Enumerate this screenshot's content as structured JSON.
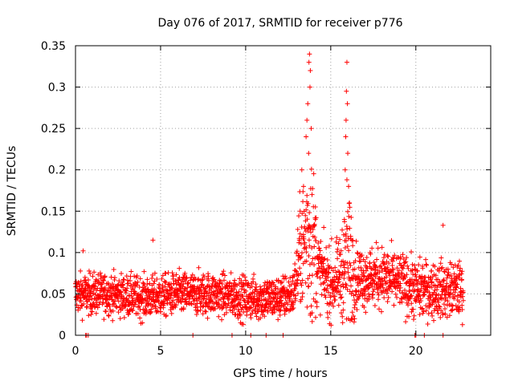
{
  "chart_data": {
    "type": "scatter",
    "title": "Day 076 of 2017, SRMTID for receiver p776",
    "xlabel": "GPS time / hours",
    "ylabel": "SRMTID / TECUs",
    "xlim": [
      0,
      24.4
    ],
    "ylim": [
      0,
      0.35
    ],
    "xticks": [
      0,
      5,
      10,
      15,
      20
    ],
    "yticks": [
      0,
      0.05,
      0.1,
      0.15,
      0.2,
      0.25,
      0.3,
      0.35
    ],
    "xtick_labels": [
      "0",
      "5",
      "10",
      "15",
      "20"
    ],
    "ytick_labels": [
      "0",
      "0.05",
      "0.1",
      "0.15",
      "0.2",
      "0.25",
      "0.3",
      "0.35"
    ],
    "grid": true,
    "marker": "+",
    "marker_color": "#ff0000",
    "series": [
      {
        "name": "SRMTID",
        "sampling_interval_hours": 0.01,
        "x_range": [
          0,
          22.8
        ],
        "baseline_profile": [
          {
            "x": 0,
            "y": 0.05
          },
          {
            "x": 2,
            "y": 0.05
          },
          {
            "x": 4,
            "y": 0.045
          },
          {
            "x": 6,
            "y": 0.05
          },
          {
            "x": 8,
            "y": 0.05
          },
          {
            "x": 10,
            "y": 0.045
          },
          {
            "x": 12,
            "y": 0.045
          },
          {
            "x": 12.8,
            "y": 0.05
          },
          {
            "x": 13.2,
            "y": 0.1
          },
          {
            "x": 13.8,
            "y": 0.13
          },
          {
            "x": 14.3,
            "y": 0.08
          },
          {
            "x": 15,
            "y": 0.06
          },
          {
            "x": 15.5,
            "y": 0.07
          },
          {
            "x": 16,
            "y": 0.09
          },
          {
            "x": 16.5,
            "y": 0.07
          },
          {
            "x": 18,
            "y": 0.07
          },
          {
            "x": 19,
            "y": 0.065
          },
          {
            "x": 20,
            "y": 0.055
          },
          {
            "x": 22.8,
            "y": 0.055
          }
        ],
        "spread_profile": [
          {
            "x": 0,
            "y": 0.012
          },
          {
            "x": 12.8,
            "y": 0.013
          },
          {
            "x": 13.2,
            "y": 0.03
          },
          {
            "x": 13.8,
            "y": 0.06
          },
          {
            "x": 14.3,
            "y": 0.02
          },
          {
            "x": 15.5,
            "y": 0.02
          },
          {
            "x": 16,
            "y": 0.05
          },
          {
            "x": 16.5,
            "y": 0.018
          },
          {
            "x": 22.8,
            "y": 0.016
          }
        ],
        "peak_points": [
          {
            "x": 13.75,
            "y": 0.34
          },
          {
            "x": 13.72,
            "y": 0.33
          },
          {
            "x": 13.8,
            "y": 0.32
          },
          {
            "x": 13.78,
            "y": 0.3
          },
          {
            "x": 13.65,
            "y": 0.28
          },
          {
            "x": 13.6,
            "y": 0.26
          },
          {
            "x": 13.85,
            "y": 0.25
          },
          {
            "x": 13.55,
            "y": 0.24
          },
          {
            "x": 13.7,
            "y": 0.22
          },
          {
            "x": 13.3,
            "y": 0.2
          },
          {
            "x": 13.4,
            "y": 0.18
          },
          {
            "x": 13.9,
            "y": 0.17
          },
          {
            "x": 13.2,
            "y": 0.15
          },
          {
            "x": 14.1,
            "y": 0.14
          },
          {
            "x": 15.95,
            "y": 0.33
          },
          {
            "x": 15.92,
            "y": 0.295
          },
          {
            "x": 15.98,
            "y": 0.28
          },
          {
            "x": 15.9,
            "y": 0.26
          },
          {
            "x": 15.88,
            "y": 0.24
          },
          {
            "x": 16.0,
            "y": 0.22
          },
          {
            "x": 15.85,
            "y": 0.2
          },
          {
            "x": 16.05,
            "y": 0.18
          },
          {
            "x": 16.1,
            "y": 0.16
          },
          {
            "x": 15.8,
            "y": 0.14
          },
          {
            "x": 4.55,
            "y": 0.115
          },
          {
            "x": 0.45,
            "y": 0.102
          },
          {
            "x": 21.6,
            "y": 0.133
          }
        ],
        "zero_points": [
          0.6,
          0.65,
          0.75,
          6.9,
          9.2,
          10.3,
          11.2,
          12.2,
          19.95,
          20.0,
          20.5,
          21.6
        ]
      }
    ]
  }
}
